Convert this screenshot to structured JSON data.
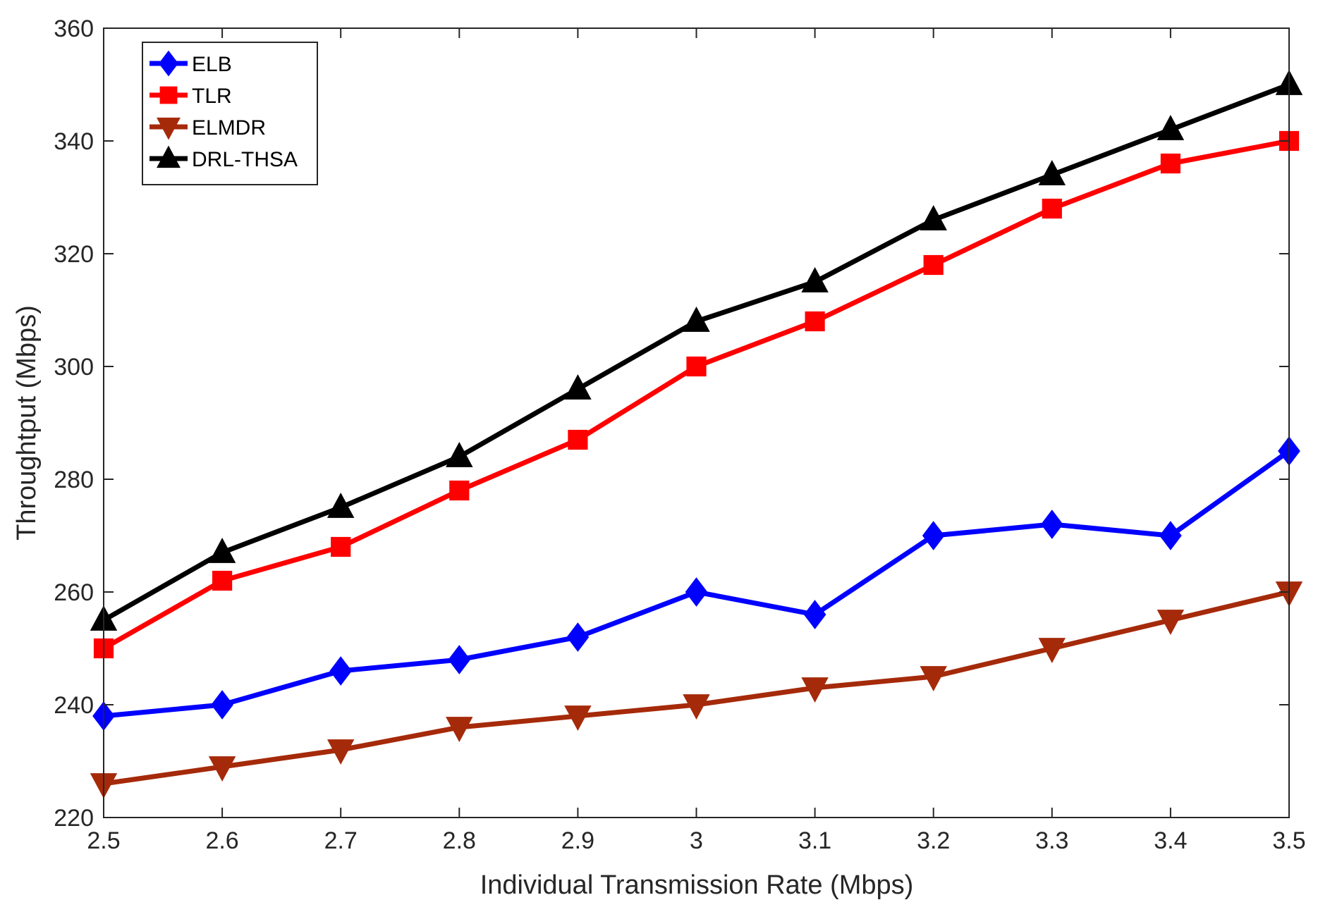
{
  "chart_data": {
    "type": "line",
    "title": "",
    "xlabel": "Individual Transmission Rate (Mbps)",
    "ylabel": "Throughtput (Mbps)",
    "x": [
      2.5,
      2.6,
      2.7,
      2.8,
      2.9,
      3.0,
      3.1,
      3.2,
      3.3,
      3.4,
      3.5
    ],
    "xticks": [
      2.5,
      2.6,
      2.7,
      2.8,
      2.9,
      3.0,
      3.1,
      3.2,
      3.3,
      3.4,
      3.5
    ],
    "xtick_labels": [
      "2.5",
      "2.6",
      "2.7",
      "2.8",
      "2.9",
      "3",
      "3.1",
      "3.2",
      "3.3",
      "3.4",
      "3.5"
    ],
    "yticks": [
      220,
      240,
      260,
      280,
      300,
      320,
      340,
      360
    ],
    "ytick_labels": [
      "220",
      "240",
      "260",
      "280",
      "300",
      "320",
      "340",
      "360"
    ],
    "xlim": [
      2.5,
      3.5
    ],
    "ylim": [
      220,
      360
    ],
    "grid": false,
    "legend_position": "top-left",
    "series": [
      {
        "name": "ELB",
        "color": "#0000FF",
        "marker": "diamond",
        "values": [
          238,
          240,
          246,
          248,
          252,
          260,
          256,
          270,
          272,
          270,
          285
        ]
      },
      {
        "name": "TLR",
        "color": "#FF0000",
        "marker": "square",
        "values": [
          250,
          262,
          268,
          278,
          287,
          300,
          308,
          318,
          328,
          336,
          340
        ]
      },
      {
        "name": "ELMDR",
        "color": "#A52A0A",
        "marker": "triangle-down",
        "values": [
          226,
          229,
          232,
          236,
          238,
          240,
          243,
          245,
          250,
          255,
          260
        ]
      },
      {
        "name": "DRL-THSA",
        "color": "#000000",
        "marker": "triangle-up",
        "values": [
          255,
          267,
          275,
          284,
          296,
          308,
          315,
          326,
          334,
          342,
          350
        ]
      }
    ]
  }
}
